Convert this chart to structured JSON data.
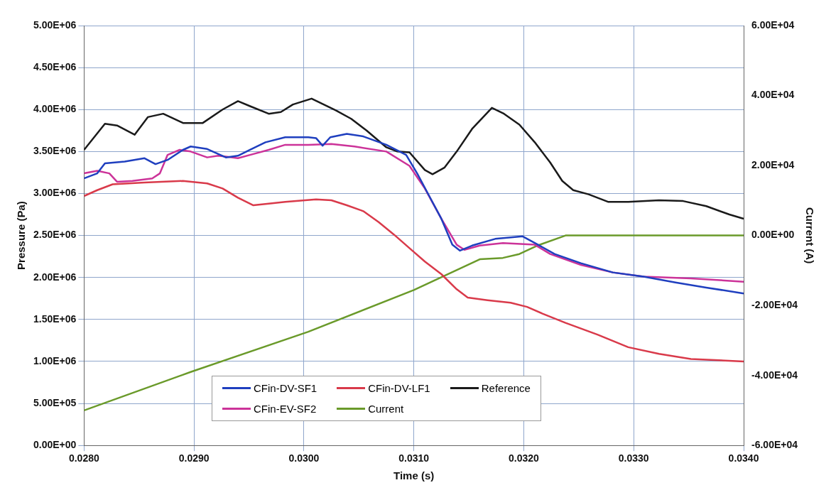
{
  "chart_data": {
    "type": "line",
    "xlabel": "Time (s)",
    "ylabel": "Pressure (Pa)",
    "y2label": "Current (A)",
    "xlim": [
      0.028,
      0.034
    ],
    "xticks": [
      {
        "value": 0.028,
        "label": "0.0280"
      },
      {
        "value": 0.029,
        "label": "0.0290"
      },
      {
        "value": 0.03,
        "label": "0.0300"
      },
      {
        "value": 0.031,
        "label": "0.0310"
      },
      {
        "value": 0.032,
        "label": "0.0320"
      },
      {
        "value": 0.033,
        "label": "0.0330"
      },
      {
        "value": 0.034,
        "label": "0.0340"
      }
    ],
    "ylim": [
      0,
      5000000
    ],
    "yticks": [
      {
        "value": 0,
        "label": "0.00E+00"
      },
      {
        "value": 500000,
        "label": "5.00E+05"
      },
      {
        "value": 1000000,
        "label": "1.00E+06"
      },
      {
        "value": 1500000,
        "label": "1.50E+06"
      },
      {
        "value": 2000000,
        "label": "2.00E+06"
      },
      {
        "value": 2500000,
        "label": "2.50E+06"
      },
      {
        "value": 3000000,
        "label": "3.00E+06"
      },
      {
        "value": 3500000,
        "label": "3.50E+06"
      },
      {
        "value": 4000000,
        "label": "4.00E+06"
      },
      {
        "value": 4500000,
        "label": "4.50E+06"
      },
      {
        "value": 5000000,
        "label": "5.00E+06"
      }
    ],
    "y2lim": [
      -60000,
      60000
    ],
    "y2ticks": [
      {
        "value": -60000,
        "label": "-6.00E+04"
      },
      {
        "value": -40000,
        "label": "-4.00E+04"
      },
      {
        "value": -20000,
        "label": "-2.00E+04"
      },
      {
        "value": 0,
        "label": "0.00E+00"
      },
      {
        "value": 20000,
        "label": "2.00E+04"
      },
      {
        "value": 40000,
        "label": "4.00E+04"
      },
      {
        "value": 60000,
        "label": "6.00E+04"
      }
    ],
    "grid": true,
    "legend": "bottom",
    "marker": "none",
    "line_style": "solid",
    "series": [
      {
        "name": "CFin-DV-SF1",
        "color": "#1f3fbf",
        "x": [
          0.028,
          0.02812,
          0.02819,
          0.02837,
          0.02855,
          0.02865,
          0.02876,
          0.0289,
          0.02897,
          0.02912,
          0.02929,
          0.0294,
          0.02951,
          0.02965,
          0.02983,
          0.03004,
          0.03011,
          0.03017,
          0.03024,
          0.03039,
          0.03054,
          0.03075,
          0.03093,
          0.03103,
          0.03114,
          0.03125,
          0.03135,
          0.03142,
          0.03153,
          0.03174,
          0.03199,
          0.03213,
          0.03228,
          0.03252,
          0.03281,
          0.03309,
          0.03338,
          0.03366,
          0.034
        ],
        "values": [
          3180000,
          3240000,
          3360000,
          3380000,
          3420000,
          3350000,
          3400000,
          3520000,
          3560000,
          3530000,
          3430000,
          3450000,
          3520000,
          3610000,
          3670000,
          3670000,
          3660000,
          3570000,
          3670000,
          3710000,
          3680000,
          3580000,
          3460000,
          3240000,
          2970000,
          2700000,
          2390000,
          2320000,
          2380000,
          2460000,
          2490000,
          2390000,
          2280000,
          2170000,
          2060000,
          2010000,
          1940000,
          1880000,
          1810000
        ]
      },
      {
        "name": "CFin-DV-LF1",
        "color": "#d93a4a",
        "x": [
          0.028,
          0.02812,
          0.02826,
          0.02855,
          0.0289,
          0.02912,
          0.02926,
          0.0294,
          0.02954,
          0.02968,
          0.02983,
          0.03011,
          0.03025,
          0.03039,
          0.03054,
          0.03068,
          0.03082,
          0.03096,
          0.0311,
          0.03125,
          0.03139,
          0.03149,
          0.03167,
          0.03188,
          0.03203,
          0.03217,
          0.03238,
          0.03267,
          0.03295,
          0.03323,
          0.03352,
          0.034
        ],
        "values": [
          2970000,
          3040000,
          3110000,
          3130000,
          3150000,
          3120000,
          3060000,
          2950000,
          2860000,
          2880000,
          2900000,
          2930000,
          2920000,
          2860000,
          2790000,
          2660000,
          2510000,
          2350000,
          2190000,
          2040000,
          1860000,
          1760000,
          1730000,
          1700000,
          1650000,
          1570000,
          1460000,
          1320000,
          1170000,
          1090000,
          1030000,
          1000000
        ]
      },
      {
        "name": "Reference",
        "color": "#1a1a1a",
        "x": [
          0.028,
          0.02819,
          0.0283,
          0.02846,
          0.02858,
          0.02872,
          0.0289,
          0.02908,
          0.02926,
          0.0294,
          0.02951,
          0.02968,
          0.02979,
          0.0299,
          0.03007,
          0.03018,
          0.03029,
          0.03043,
          0.03057,
          0.03075,
          0.03085,
          0.03096,
          0.0311,
          0.03117,
          0.03128,
          0.03139,
          0.03153,
          0.03171,
          0.03182,
          0.03196,
          0.0321,
          0.03224,
          0.03235,
          0.03245,
          0.03259,
          0.03277,
          0.03295,
          0.03323,
          0.03345,
          0.03366,
          0.03387,
          0.034
        ],
        "values": [
          3520000,
          3830000,
          3810000,
          3700000,
          3910000,
          3950000,
          3840000,
          3840000,
          4000000,
          4100000,
          4040000,
          3950000,
          3970000,
          4060000,
          4130000,
          4060000,
          3990000,
          3890000,
          3750000,
          3550000,
          3500000,
          3490000,
          3280000,
          3230000,
          3310000,
          3500000,
          3770000,
          4020000,
          3950000,
          3820000,
          3610000,
          3370000,
          3150000,
          3040000,
          2990000,
          2900000,
          2900000,
          2920000,
          2910000,
          2850000,
          2750000,
          2700000
        ]
      },
      {
        "name": "CFin-EV-SF2",
        "color": "#cc3399",
        "x": [
          0.028,
          0.02812,
          0.02823,
          0.0283,
          0.02844,
          0.02862,
          0.02869,
          0.02876,
          0.02887,
          0.02897,
          0.02912,
          0.02922,
          0.02929,
          0.0294,
          0.02954,
          0.02968,
          0.02983,
          0.03004,
          0.03025,
          0.03046,
          0.03075,
          0.03096,
          0.0311,
          0.03125,
          0.03139,
          0.03146,
          0.0316,
          0.03181,
          0.0321,
          0.03224,
          0.03252,
          0.03281,
          0.03309,
          0.03352,
          0.034
        ],
        "values": [
          3240000,
          3270000,
          3240000,
          3140000,
          3150000,
          3180000,
          3240000,
          3460000,
          3520000,
          3500000,
          3430000,
          3450000,
          3440000,
          3420000,
          3470000,
          3520000,
          3580000,
          3580000,
          3590000,
          3560000,
          3500000,
          3330000,
          3060000,
          2700000,
          2390000,
          2330000,
          2380000,
          2410000,
          2390000,
          2280000,
          2150000,
          2060000,
          2010000,
          1990000,
          1950000
        ]
      },
      {
        "name": "Current",
        "color": "#6a9a2a",
        "axis": "y2",
        "x": [
          0.028,
          0.02897,
          0.03004,
          0.031,
          0.0316,
          0.03181,
          0.03196,
          0.03213,
          0.03238,
          0.034
        ],
        "values": [
          -50000,
          -39000,
          -27500,
          -15600,
          -6800,
          -6400,
          -5300,
          -2800,
          0,
          0
        ]
      }
    ]
  }
}
